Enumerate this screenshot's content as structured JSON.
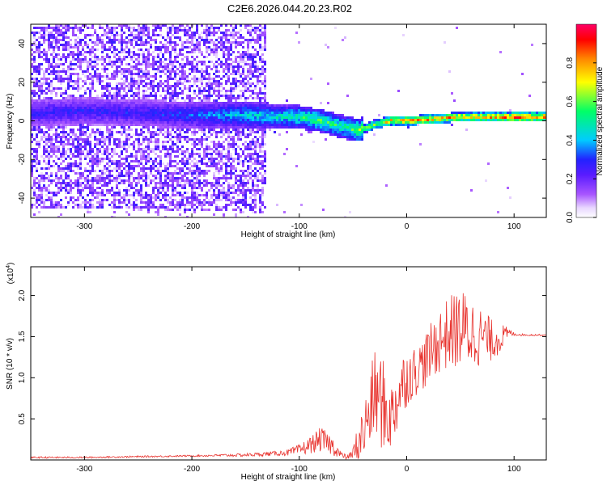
{
  "title": "C2E6.2026.044.20.23.R02",
  "chart_data": [
    {
      "type": "heatmap",
      "xlabel": "Height of straight line (km)",
      "ylabel": "Frequency (Hz)",
      "xlim": [
        -350,
        130
      ],
      "ylim": [
        -50,
        50
      ],
      "xticks": [
        -300,
        -200,
        -100,
        0,
        100
      ],
      "yticks": [
        -40,
        -20,
        0,
        20,
        40
      ],
      "colorbar": {
        "label": "Normalized spectral amplitude",
        "range": [
          0,
          1
        ],
        "ticks": [
          "0.0",
          "0.2",
          "0.4",
          "0.6",
          "0.8"
        ],
        "tick_values": [
          0.0,
          0.2,
          0.4,
          0.6,
          0.8
        ],
        "colormap": [
          "#ffffff",
          "#e8d6ff",
          "#7b20ff",
          "#2222ff",
          "#00ccff",
          "#00ff66",
          "#ffff00",
          "#ff8800",
          "#ff0000",
          "#ff0066"
        ]
      },
      "ridge": {
        "x": [
          -350,
          -300,
          -250,
          -200,
          -150,
          -120,
          -100,
          -80,
          -60,
          -45,
          -30,
          -15,
          0,
          25,
          50,
          75,
          100,
          130
        ],
        "freq": [
          4,
          5,
          4,
          3,
          3,
          2,
          2,
          0,
          -3,
          -5,
          -2,
          0,
          0,
          1,
          2,
          2,
          2,
          2
        ],
        "amplitude": [
          0.3,
          0.3,
          0.3,
          0.35,
          0.45,
          0.5,
          0.55,
          0.6,
          0.55,
          0.65,
          0.7,
          0.85,
          0.9,
          0.88,
          0.85,
          0.85,
          0.95,
          0.95
        ]
      }
    },
    {
      "type": "line",
      "xlabel": "Height of straight line (km)",
      "ylabel": "SNR (10 * v/v)",
      "scale_label": "(x10",
      "scale_exp": "4",
      "scale_close": ")",
      "xlim": [
        -350,
        130
      ],
      "ylim": [
        0,
        2.35
      ],
      "xticks": [
        -300,
        -200,
        -100,
        0,
        100
      ],
      "yticks": [
        0.5,
        1.0,
        1.5,
        2.0
      ],
      "ytick_labels": [
        "0.5",
        "1.0",
        "1.5",
        "2.0"
      ],
      "series": [
        {
          "color": "#e8332e",
          "x": [
            -350,
            -300,
            -250,
            -200,
            -150,
            -120,
            -110,
            -100,
            -90,
            -80,
            -70,
            -60,
            -55,
            -50,
            -45,
            -40,
            -35,
            -30,
            -25,
            -20,
            -15,
            -10,
            -5,
            0,
            10,
            20,
            30,
            40,
            50,
            60,
            70,
            80,
            90,
            95,
            100,
            110,
            130
          ],
          "y": [
            0.03,
            0.03,
            0.04,
            0.05,
            0.06,
            0.08,
            0.09,
            0.12,
            0.18,
            0.25,
            0.18,
            0.05,
            0.03,
            0.08,
            0.2,
            0.35,
            0.55,
            0.8,
            0.75,
            0.6,
            0.5,
            0.7,
            0.9,
            1.0,
            1.1,
            1.25,
            1.45,
            1.55,
            1.6,
            1.55,
            1.5,
            1.45,
            1.5,
            1.55,
            1.53,
            1.52,
            1.52
          ],
          "noise_amplitude": [
            0.01,
            0.01,
            0.01,
            0.01,
            0.02,
            0.03,
            0.04,
            0.07,
            0.1,
            0.15,
            0.12,
            0.04,
            0.03,
            0.1,
            0.25,
            0.35,
            0.45,
            0.55,
            0.6,
            0.55,
            0.4,
            0.45,
            0.4,
            0.35,
            0.3,
            0.35,
            0.4,
            0.45,
            0.5,
            0.45,
            0.35,
            0.25,
            0.15,
            0.05,
            0.02,
            0.01,
            0.01
          ]
        }
      ]
    }
  ]
}
